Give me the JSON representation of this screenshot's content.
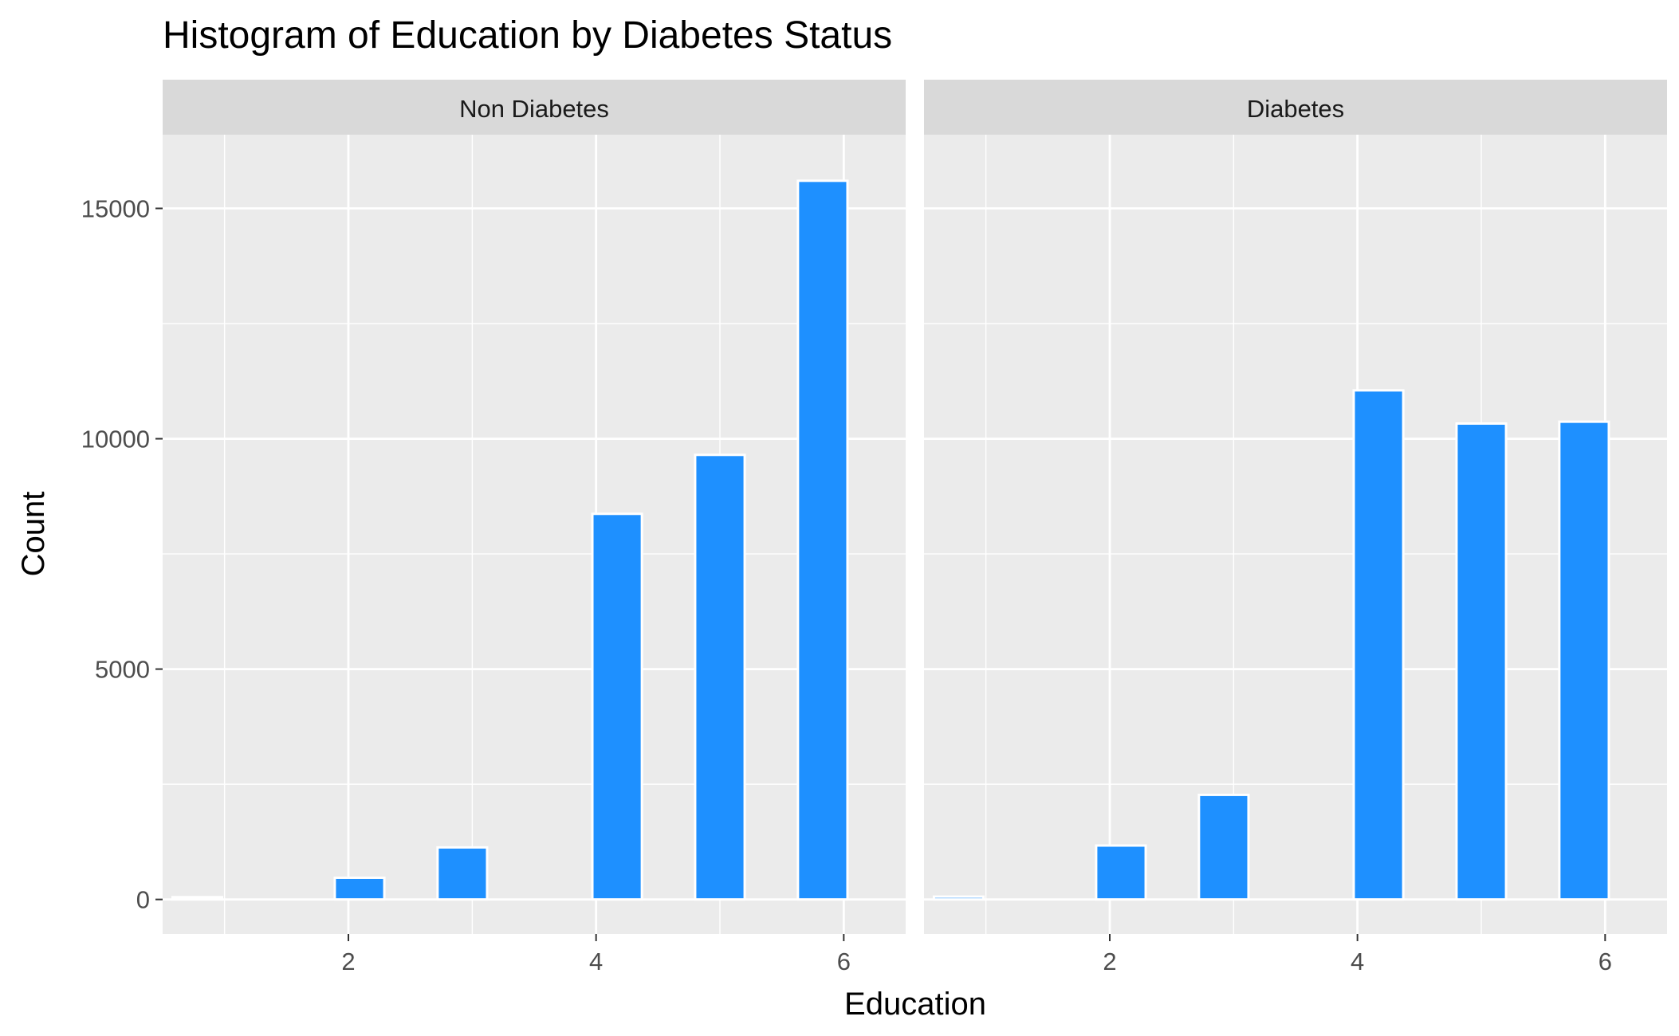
{
  "chart_data": {
    "type": "bar",
    "title": "Histogram of Education by Diabetes Status",
    "xlabel": "Education",
    "ylabel": "Count",
    "xlim": [
      0.5,
      6.5
    ],
    "ylim": [
      -750,
      16600
    ],
    "x_ticks": [
      2,
      4,
      6
    ],
    "y_ticks": [
      0,
      5000,
      10000,
      15000
    ],
    "y_tick_labels": [
      "0",
      "5000",
      "10000",
      "15000"
    ],
    "grid": true,
    "bar_color": "#1E90FF",
    "bar_outline": "#ffffff",
    "panel_bg": "#EBEBEB",
    "strip_bg": "#D9D9D9",
    "bin_width": 0.4,
    "panels": [
      {
        "label": "Non Diabetes",
        "bars": [
          {
            "x": 0.78,
            "value": 50
          },
          {
            "x": 2.09,
            "value": 470
          },
          {
            "x": 2.92,
            "value": 1130
          },
          {
            "x": 4.17,
            "value": 8370
          },
          {
            "x": 5.0,
            "value": 9650
          },
          {
            "x": 5.83,
            "value": 15600
          }
        ]
      },
      {
        "label": "Diabetes",
        "bars": [
          {
            "x": 0.78,
            "value": 60
          },
          {
            "x": 2.09,
            "value": 1170
          },
          {
            "x": 2.92,
            "value": 2270
          },
          {
            "x": 4.17,
            "value": 11050
          },
          {
            "x": 5.0,
            "value": 10330
          },
          {
            "x": 5.83,
            "value": 10370
          }
        ]
      }
    ]
  }
}
